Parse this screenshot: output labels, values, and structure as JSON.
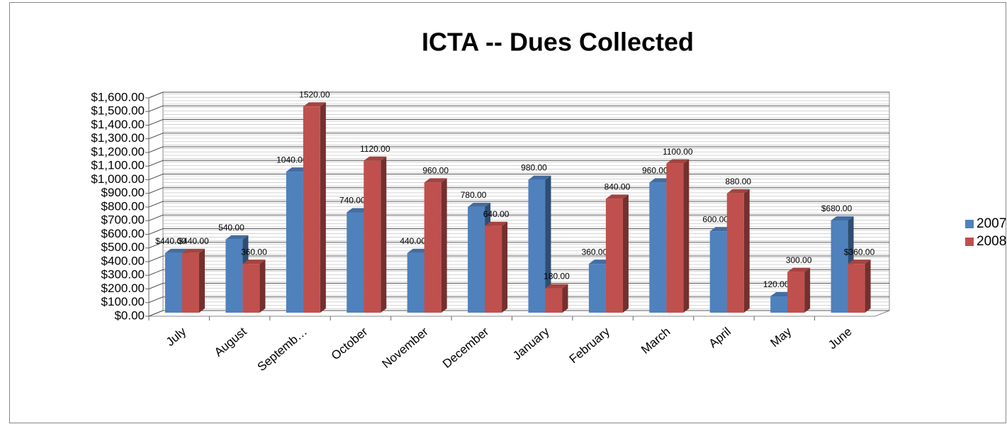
{
  "chart_data": {
    "type": "bar3d",
    "title": "ICTA -- Dues Collected",
    "categories": [
      "July",
      "August",
      "Septemb…",
      "October",
      "November",
      "December",
      "January",
      "February",
      "March",
      "April",
      "May",
      "June"
    ],
    "series": [
      {
        "name": "2007",
        "color": "#4f81bd",
        "values": [
          440,
          540,
          1040,
          740,
          440,
          780,
          980,
          360,
          960,
          600,
          120,
          680
        ],
        "value_labels": [
          "$440.00",
          "540.00",
          "1040.00",
          "740.00",
          "440.00",
          "780.00",
          "980.00",
          "360.00",
          "960.00",
          "600.00",
          "120.00",
          "$680.00"
        ]
      },
      {
        "name": "2008",
        "color": "#c0504d",
        "values": [
          440,
          360,
          1520,
          1120,
          960,
          640,
          180,
          840,
          1100,
          880,
          300,
          360
        ],
        "value_labels": [
          "$440.00",
          "360.00",
          "1520.00",
          "1120.00",
          "960.00",
          "640.00",
          "180.00",
          "840.00",
          "1100.00",
          "880.00",
          "300.00",
          "$360.00"
        ]
      }
    ],
    "ylim": [
      0,
      1600
    ],
    "yticks": [
      {
        "value": 0,
        "label": "$0.00"
      },
      {
        "value": 100,
        "label": "$100.00"
      },
      {
        "value": 200,
        "label": "$200.00"
      },
      {
        "value": 300,
        "label": "$300.00"
      },
      {
        "value": 400,
        "label": "$400.00"
      },
      {
        "value": 500,
        "label": "$500.00"
      },
      {
        "value": 600,
        "label": "$600.00"
      },
      {
        "value": 700,
        "label": "$700.00"
      },
      {
        "value": 800,
        "label": "$800.00"
      },
      {
        "value": 900,
        "label": "$900.00"
      },
      {
        "value": 1000,
        "label": "$1,000.00"
      },
      {
        "value": 1100,
        "label": "$1,100.00"
      },
      {
        "value": 1200,
        "label": "$1,200.00"
      },
      {
        "value": 1300,
        "label": "$1,300.00"
      },
      {
        "value": 1400,
        "label": "$1,400.00"
      },
      {
        "value": 1500,
        "label": "$1,500.00"
      },
      {
        "value": 1600,
        "label": "$1,600.00"
      }
    ],
    "grid": true,
    "legend": "right"
  }
}
